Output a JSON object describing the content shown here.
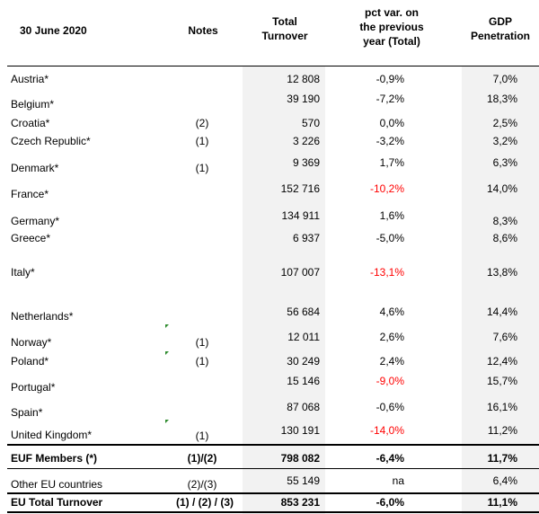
{
  "header": {
    "date": "30 June 2020",
    "notes": "Notes",
    "total_turnover_1": "Total",
    "total_turnover_2": "Turnover",
    "pct_1": "pct var. on",
    "pct_2": "the previous",
    "pct_3": "year (Total)",
    "gdp_1": "GDP",
    "gdp_2": "Penetration"
  },
  "colors": {
    "negative": "#ff0000",
    "shade": "#f2f2f2",
    "marker": "#2e8b2e"
  },
  "rows": [
    {
      "name": "Austria*",
      "notes": "",
      "turnover": "12 808",
      "pct": "-0,9%",
      "gdp": "7,0%",
      "neg": false
    },
    {
      "name": "Belgium*",
      "notes": "",
      "turnover": "39 190",
      "pct": "-7,2%",
      "gdp": "18,3%",
      "neg": false
    },
    {
      "name": "Croatia*",
      "notes": "(2)",
      "turnover": "570",
      "pct": "0,0%",
      "gdp": "2,5%",
      "neg": false
    },
    {
      "name": "Czech Republic*",
      "notes": "(1)",
      "turnover": "3 226",
      "pct": "-3,2%",
      "gdp": "3,2%",
      "neg": false
    },
    {
      "name": "Denmark*",
      "notes": "(1)",
      "turnover": "9 369",
      "pct": "1,7%",
      "gdp": "6,3%",
      "neg": false
    },
    {
      "name": "France*",
      "notes": "",
      "turnover": "152 716",
      "pct": "-10,2%",
      "gdp": "14,0%",
      "neg": true
    },
    {
      "name": "Germany*",
      "notes": "",
      "turnover": "134 911",
      "pct": "1,6%",
      "gdp": "8,3%",
      "neg": false
    },
    {
      "name": "Greece*",
      "notes": "",
      "turnover": "6 937",
      "pct": "-5,0%",
      "gdp": "8,6%",
      "neg": false
    },
    {
      "name": "Italy*",
      "notes": "",
      "turnover": "107 007",
      "pct": "-13,1%",
      "gdp": "13,8%",
      "neg": true
    },
    {
      "name": "Netherlands*",
      "notes": "",
      "turnover": "56 684",
      "pct": "4,6%",
      "gdp": "14,4%",
      "neg": false
    },
    {
      "name": "Norway*",
      "notes": "(1)",
      "turnover": "12 011",
      "pct": "2,6%",
      "gdp": "7,6%",
      "neg": false
    },
    {
      "name": "Poland*",
      "notes": "(1)",
      "turnover": "30 249",
      "pct": "2,4%",
      "gdp": "12,4%",
      "neg": false
    },
    {
      "name": "Portugal*",
      "notes": "",
      "turnover": "15 146",
      "pct": "-9,0%",
      "gdp": "15,7%",
      "neg": true
    },
    {
      "name": "Spain*",
      "notes": "",
      "turnover": "87 068",
      "pct": "-0,6%",
      "gdp": "16,1%",
      "neg": false
    },
    {
      "name": "United Kingdom*",
      "notes": "(1)",
      "turnover": "130 191",
      "pct": "-14,0%",
      "gdp": "11,2%",
      "neg": true
    }
  ],
  "euf_members": {
    "name": "EUF Members (*)",
    "notes": "(1)/(2)",
    "turnover": "798 082",
    "pct": "-6,4%",
    "gdp": "11,7%"
  },
  "other_eu": {
    "name": "Other EU countries",
    "notes": "(2)/(3)",
    "turnover": "55 149",
    "pct": "na",
    "gdp": "6,4%"
  },
  "eu_total": {
    "name": "EU Total Turnover",
    "notes": "(1) / (2) / (3)",
    "turnover": "853 231",
    "pct": "-6,0%",
    "gdp": "11,1%"
  }
}
